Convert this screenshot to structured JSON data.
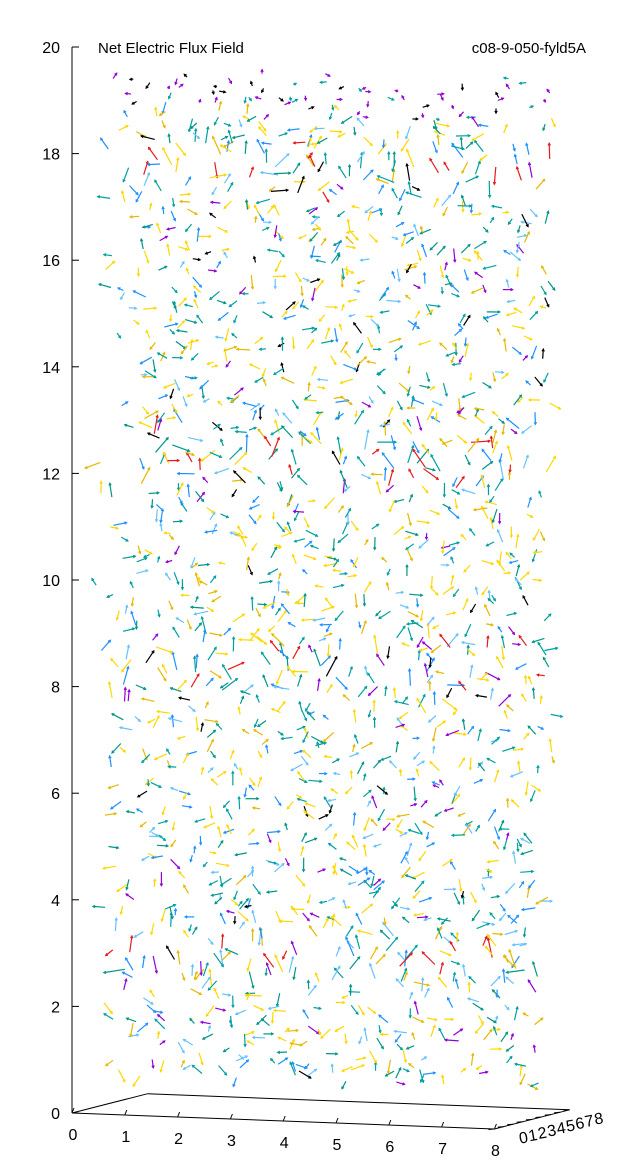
{
  "chart_data": {
    "type": "vector-field-3d",
    "title": "Net Electric Flux Field",
    "subtitle": "c08-9-050-fyld5A",
    "xlabel": "",
    "ylabel": "",
    "zlabel": "",
    "x_range": [
      0,
      8
    ],
    "y_range": [
      0,
      8
    ],
    "z_range": [
      0,
      20
    ],
    "x_ticks": [
      "0",
      "1",
      "2",
      "3",
      "4",
      "5",
      "6",
      "7",
      "8"
    ],
    "y_ticks": [
      "0",
      "1",
      "2",
      "3",
      "4",
      "5",
      "6",
      "7",
      "8"
    ],
    "z_ticks": [
      "0",
      "2",
      "4",
      "6",
      "8",
      "10",
      "12",
      "14",
      "16",
      "18",
      "20"
    ],
    "grid": false,
    "legend": "none",
    "arrow_colors": [
      "#ffd700",
      "#e6b800",
      "#1e90ff",
      "#00a0a0",
      "#009688",
      "#66c2ff",
      "#9400d3",
      "#000000",
      "#e41a1c"
    ],
    "dense_bands_z": [
      2.8,
      8.3,
      12.3,
      17.6
    ]
  }
}
